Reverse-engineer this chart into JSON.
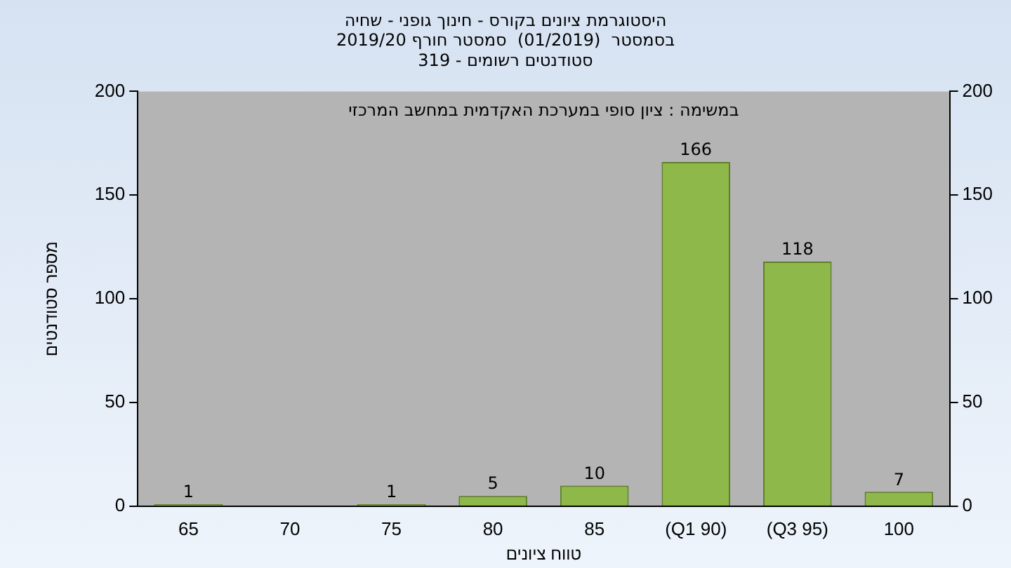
{
  "chart_data": {
    "type": "bar",
    "title": "היסטוגרמת ציונים בקורס - חינוך גופני - שחיה\nבסמסטר  (01/2019)  סמסטר חורף 2019/20\nסטודנטים רשומים - 319",
    "annotations": [
      "במשימה : ציון סופי במערכת האקדמית במחשב המרכזי"
    ],
    "xlabel": "טווח ציונים",
    "ylabel": "מספר סטודנטים",
    "categories": [
      "65",
      "70",
      "75",
      "80",
      "85",
      "(Q1 90)",
      "(Q3 95)",
      "100"
    ],
    "values": [
      1,
      0,
      1,
      5,
      10,
      166,
      118,
      7
    ],
    "value_labels": [
      "1",
      null,
      "1",
      "5",
      "10",
      "166",
      "118",
      "7"
    ],
    "color": "#8fb84a",
    "ylim": [
      0,
      200
    ],
    "yticks": [
      0,
      50,
      100,
      150,
      200
    ],
    "y2lim": [
      0,
      200
    ],
    "y2ticks": [
      0,
      50,
      100,
      150,
      200
    ],
    "grid": false
  }
}
